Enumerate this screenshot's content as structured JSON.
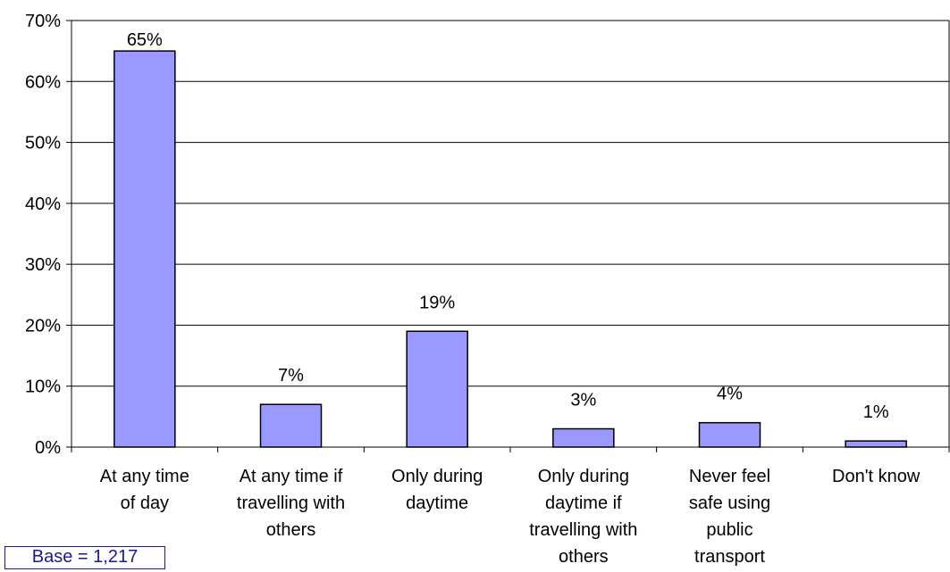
{
  "chart_data": {
    "type": "bar",
    "categories": [
      [
        "At any time",
        "of day"
      ],
      [
        "At any time if",
        "travelling with",
        "others"
      ],
      [
        "Only during",
        "daytime"
      ],
      [
        "Only during",
        "daytime if",
        "travelling with",
        "others"
      ],
      [
        "Never feel",
        "safe using",
        "public",
        "transport"
      ],
      [
        "Don't know"
      ]
    ],
    "values": [
      65,
      7,
      19,
      3,
      4,
      1
    ],
    "data_labels": [
      "65%",
      "7%",
      "19%",
      "3%",
      "4%",
      "1%"
    ],
    "ylim": [
      0,
      70
    ],
    "yticks": [
      "0%",
      "10%",
      "20%",
      "30%",
      "40%",
      "50%",
      "60%",
      "70%"
    ],
    "grid": true,
    "title": "",
    "xlabel": "",
    "ylabel": "",
    "bar_color": "#9999ff",
    "bar_edge_color": "#000000"
  },
  "note": {
    "base_text": "Base = 1,217"
  }
}
